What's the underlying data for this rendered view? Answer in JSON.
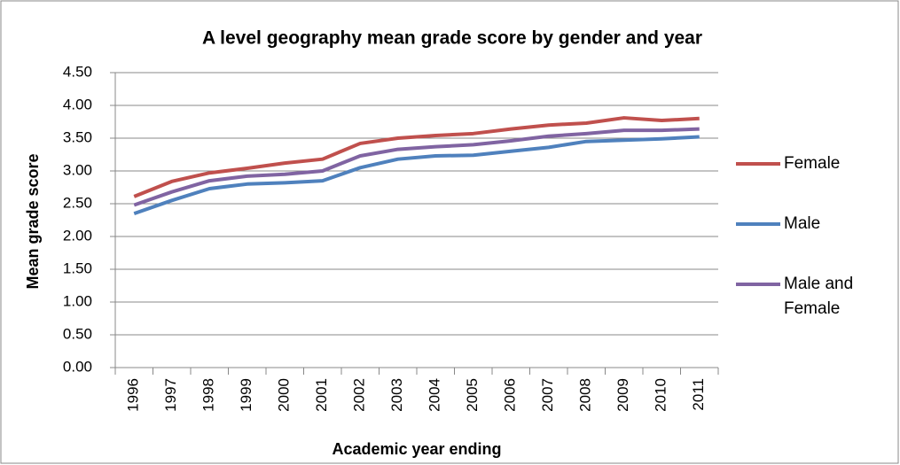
{
  "chart_data": {
    "type": "line",
    "title": "A level geography mean grade score by gender and year",
    "x_label": "Academic year ending",
    "y_label": "Mean grade score",
    "categories": [
      "1996",
      "1997",
      "1998",
      "1999",
      "2000",
      "2001",
      "2002",
      "2003",
      "2004",
      "2005",
      "2006",
      "2007",
      "2008",
      "2009",
      "2010",
      "2011"
    ],
    "series": [
      {
        "name": "Female",
        "color": "#c0504d",
        "values": [
          2.61,
          2.84,
          2.97,
          3.04,
          3.12,
          3.18,
          3.42,
          3.5,
          3.54,
          3.57,
          3.64,
          3.7,
          3.73,
          3.81,
          3.77,
          3.8
        ]
      },
      {
        "name": "Male",
        "color": "#4f81bd",
        "values": [
          2.35,
          2.55,
          2.73,
          2.8,
          2.82,
          2.85,
          3.05,
          3.18,
          3.23,
          3.24,
          3.3,
          3.36,
          3.45,
          3.47,
          3.49,
          3.52
        ]
      },
      {
        "name": "Male and Female",
        "color": "#8064a2",
        "values": [
          2.48,
          2.68,
          2.85,
          2.92,
          2.95,
          3.0,
          3.23,
          3.33,
          3.37,
          3.4,
          3.46,
          3.53,
          3.57,
          3.62,
          3.62,
          3.64
        ]
      }
    ],
    "ylim": [
      0,
      4.5
    ],
    "yticks": [
      {
        "value": 0,
        "label": "0.00"
      },
      {
        "value": 0.5,
        "label": "0.50"
      },
      {
        "value": 1,
        "label": "1.00"
      },
      {
        "value": 1.5,
        "label": "1.50"
      },
      {
        "value": 2,
        "label": "2.00"
      },
      {
        "value": 2.5,
        "label": "2.50"
      },
      {
        "value": 3,
        "label": "3.00"
      },
      {
        "value": 3.5,
        "label": "3.50"
      },
      {
        "value": 4,
        "label": "4.00"
      },
      {
        "value": 4.5,
        "label": "4.50"
      }
    ],
    "grid": true,
    "legend": "right"
  }
}
